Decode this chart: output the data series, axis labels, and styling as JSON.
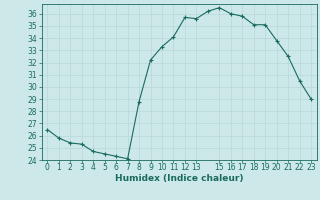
{
  "x": [
    0,
    1,
    2,
    3,
    4,
    5,
    6,
    7,
    8,
    9,
    10,
    11,
    12,
    13,
    14,
    15,
    16,
    17,
    18,
    19,
    20,
    21,
    22,
    23
  ],
  "y": [
    26.5,
    25.8,
    25.4,
    25.3,
    24.7,
    24.5,
    24.3,
    24.1,
    28.8,
    32.2,
    33.3,
    34.1,
    35.7,
    35.6,
    36.2,
    36.5,
    36.0,
    35.8,
    35.1,
    35.1,
    33.8,
    32.5,
    30.5,
    29.0
  ],
  "bg_color": "#cce8e8",
  "line_color": "#1a6b5e",
  "marker_color": "#1a6b5e",
  "grid_major_color": "#b8d8d8",
  "grid_minor_color": "#d8eded",
  "xlabel": "Humidex (Indice chaleur)",
  "ylim": [
    24,
    36.8
  ],
  "xlim": [
    -0.5,
    23.5
  ],
  "yticks": [
    24,
    25,
    26,
    27,
    28,
    29,
    30,
    31,
    32,
    33,
    34,
    35,
    36
  ],
  "xtick_positions": [
    0,
    1,
    2,
    3,
    4,
    5,
    6,
    7,
    8,
    9,
    10,
    11,
    12,
    13,
    15,
    16,
    17,
    18,
    19,
    20,
    21,
    22,
    23
  ],
  "xtick_labels": [
    "0",
    "1",
    "2",
    "3",
    "4",
    "5",
    "6",
    "7",
    "8",
    "9",
    "10",
    "11",
    "12",
    "13",
    "15",
    "16",
    "17",
    "18",
    "19",
    "20",
    "21",
    "22",
    "23"
  ],
  "font_color": "#1a6b5e",
  "tick_fontsize": 5.5,
  "xlabel_fontsize": 6.5
}
